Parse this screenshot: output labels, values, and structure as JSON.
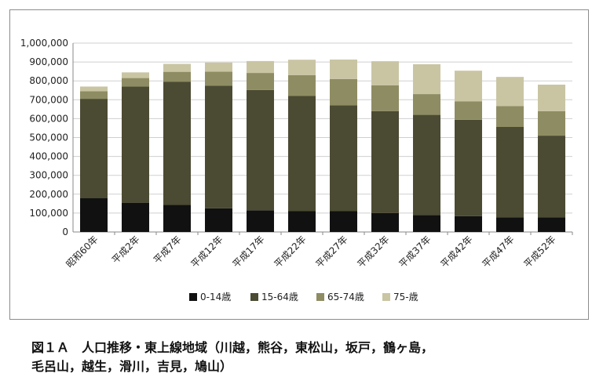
{
  "chart_data": {
    "type": "bar",
    "stacked": true,
    "categories": [
      "昭和60年",
      "平成2年",
      "平成7年",
      "平成12年",
      "平成17年",
      "平成22年",
      "平成27年",
      "平成32年",
      "平成37年",
      "平成42年",
      "平成47年",
      "平成52年"
    ],
    "series": [
      {
        "name": "0-14歳",
        "color": "#111111",
        "values": [
          180000,
          155000,
          143000,
          125000,
          115000,
          110000,
          110000,
          100000,
          90000,
          84000,
          78000,
          78000
        ]
      },
      {
        "name": "15-64歳",
        "color": "#4b4a32",
        "values": [
          525000,
          615000,
          653000,
          650000,
          637000,
          610000,
          560000,
          540000,
          530000,
          510000,
          478000,
          432000
        ]
      },
      {
        "name": "65-74歳",
        "color": "#8e8c62",
        "values": [
          40000,
          45000,
          52000,
          74000,
          90000,
          110000,
          140000,
          137000,
          110000,
          98000,
          110000,
          130000
        ]
      },
      {
        "name": "75-歳",
        "color": "#c9c5a3",
        "values": [
          25000,
          30000,
          42000,
          48000,
          63000,
          82000,
          103000,
          127000,
          158000,
          162000,
          155000,
          140000
        ]
      }
    ],
    "ylim": [
      0,
      1000000
    ],
    "ytick_step": 100000,
    "ytick_labels": [
      "0",
      "100,000",
      "200,000",
      "300,000",
      "400,000",
      "500,000",
      "600,000",
      "700,000",
      "800,000",
      "900,000",
      "1,000,000"
    ],
    "grid": true,
    "legend_position": "bottom"
  },
  "caption": {
    "line1": "図１Ａ　人口推移・東上線地域（川越，熊谷，東松山，坂戸，鶴ヶ島，",
    "line2": "毛呂山，越生，滑川，吉見，鳩山）"
  }
}
